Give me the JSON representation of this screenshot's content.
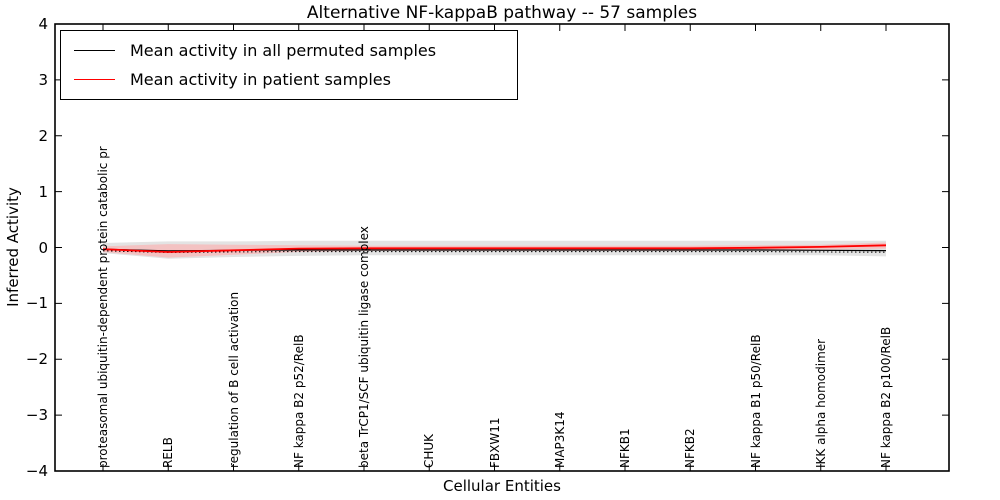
{
  "title": "Alternative NF-kappaB pathway -- 57 samples",
  "legend": {
    "items": [
      {
        "label": "Mean activity in all permuted samples",
        "color": "#000000"
      },
      {
        "label": "Mean activity in patient samples",
        "color": "#ff0000"
      }
    ]
  },
  "axes": {
    "ylabel": "Inferred Activity",
    "xlabel": "Cellular Entities",
    "ytick_labels": [
      "4",
      "3",
      "2",
      "1",
      "0",
      "−1",
      "−2",
      "−3",
      "−4"
    ]
  },
  "colors": {
    "permuted_line": "#000000",
    "patient_line": "#ff0000",
    "permuted_band": "#e3e3e3",
    "patient_band": "#f6b9b9",
    "axis": "#000000"
  },
  "chart_data": {
    "type": "line",
    "title": "Alternative NF-kappaB pathway -- 57 samples",
    "xlabel": "Cellular Entities",
    "ylabel": "Inferred Activity",
    "ylim": [
      -4,
      4
    ],
    "yticks": [
      4,
      3,
      2,
      1,
      0,
      -1,
      -2,
      -3,
      -4
    ],
    "grid": false,
    "legend_position": "upper left",
    "categories": [
      "proteasomal ubiquitin-dependent protein catabolic pr",
      "RELB",
      "regulation of B cell activation",
      "NF kappa B2 p52/RelB",
      "beta TrCP1/SCF ubiquitin ligase complex",
      "CHUK",
      "FBXW11",
      "MAP3K14",
      "NFKB1",
      "NFKB2",
      "NF kappa B1 p50/RelB",
      "IKK alpha homodimer",
      "NF kappa B2 p100/RelB"
    ],
    "series": [
      {
        "name": "Mean activity in all permuted samples",
        "color": "#000000",
        "values": [
          -0.03,
          -0.06,
          -0.05,
          -0.045,
          -0.045,
          -0.045,
          -0.045,
          -0.045,
          -0.045,
          -0.045,
          -0.045,
          -0.05,
          -0.055
        ],
        "band_upper": [
          0.08,
          0.11,
          0.11,
          0.12,
          0.12,
          0.12,
          0.12,
          0.12,
          0.12,
          0.12,
          0.12,
          0.12,
          0.12
        ],
        "band_lower": [
          -0.1,
          -0.2,
          -0.17,
          -0.15,
          -0.14,
          -0.14,
          -0.14,
          -0.14,
          -0.14,
          -0.14,
          -0.14,
          -0.14,
          -0.16
        ],
        "band_color": "#e3e3e3"
      },
      {
        "name": "Mean activity in patient samples",
        "color": "#ff0000",
        "values": [
          -0.03,
          -0.08,
          -0.05,
          -0.02,
          -0.015,
          -0.015,
          -0.015,
          -0.015,
          -0.015,
          -0.015,
          -0.005,
          0.01,
          0.04
        ],
        "band_upper": [
          0.02,
          0.06,
          0.05,
          0.04,
          0.03,
          0.03,
          0.03,
          0.03,
          0.03,
          0.03,
          0.04,
          0.05,
          0.09
        ],
        "band_lower": [
          -0.08,
          -0.18,
          -0.13,
          -0.08,
          -0.06,
          -0.06,
          -0.06,
          -0.06,
          -0.06,
          -0.06,
          -0.05,
          -0.04,
          -0.02
        ],
        "band_color": "#f6b9b9"
      }
    ]
  }
}
